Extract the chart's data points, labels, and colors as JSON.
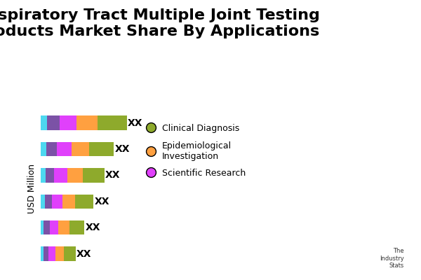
{
  "title": "Respiratory Tract Multiple Joint Testing\nProducts Market Share By Applications",
  "ylabel": "USD Million",
  "colors": [
    "#4DD8F0",
    "#7B52A6",
    "#E040FB",
    "#FFA040",
    "#8EAA2C"
  ],
  "values": [
    [
      0.8,
      1.4,
      2.0,
      2.4,
      3.4
    ],
    [
      0.7,
      1.2,
      1.7,
      2.0,
      2.9
    ],
    [
      0.6,
      1.0,
      1.5,
      1.8,
      2.5
    ],
    [
      0.5,
      0.85,
      1.2,
      1.5,
      2.1
    ],
    [
      0.4,
      0.7,
      1.0,
      1.25,
      1.75
    ],
    [
      0.35,
      0.55,
      0.8,
      1.0,
      1.4
    ]
  ],
  "legend_labels": [
    "Clinical Diagnosis",
    "Epidemiological\nInvestigation",
    "Scientific Research"
  ],
  "legend_colors": [
    "#8EAA2C",
    "#FFA040",
    "#E040FB"
  ],
  "bar_label": "XX",
  "background_color": "#FFFFFF",
  "title_fontsize": 16,
  "label_fontsize": 11
}
